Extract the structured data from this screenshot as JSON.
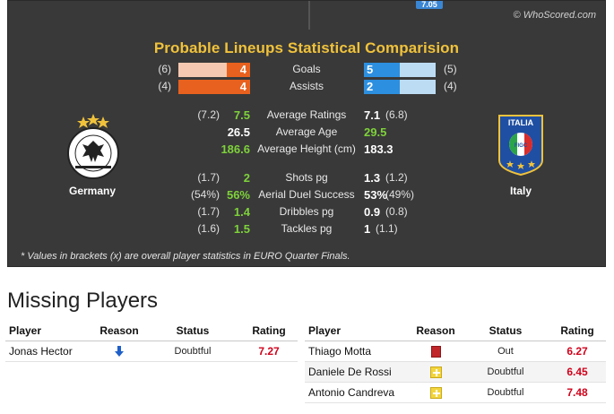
{
  "comparison": {
    "watermark": "© WhoScored.com",
    "top_badge": "7.05",
    "title": "Probable Lineups Statistical Comparision",
    "home_team": "Germany",
    "away_team": "Italy",
    "home_crest_text": "DEUTSCHER FUSSBALL-BUND",
    "away_crest_text": "ITALIA",
    "away_crest_sub": "FIGC",
    "bars": [
      {
        "label": "Goals",
        "home_paren": "(6)",
        "home_val": "4",
        "home_fraction": 0.33,
        "away_val": "5",
        "away_fraction": 0.5,
        "away_paren": "(5)"
      },
      {
        "label": "Assists",
        "home_paren": "(4)",
        "home_val": "4",
        "home_fraction": 1.0,
        "away_val": "2",
        "away_fraction": 0.5,
        "away_paren": "(4)"
      }
    ],
    "stats": [
      {
        "label": "Average Ratings",
        "home_paren": "(7.2)",
        "home_val": "7.5",
        "home_green": true,
        "away_val": "7.1",
        "away_green": false,
        "away_paren": "(6.8)"
      },
      {
        "label": "Average Age",
        "home_paren": "",
        "home_val": "26.5",
        "home_green": false,
        "away_val": "29.5",
        "away_green": true,
        "away_paren": ""
      },
      {
        "label": "Average Height (cm)",
        "home_paren": "",
        "home_val": "186.6",
        "home_green": true,
        "away_val": "183.3",
        "away_green": false,
        "away_paren": ""
      },
      {
        "label": "Shots pg",
        "home_paren": "(1.7)",
        "home_val": "2",
        "home_green": true,
        "away_val": "1.3",
        "away_green": false,
        "away_paren": "(1.2)"
      },
      {
        "label": "Aerial Duel Success",
        "home_paren": "(54%)",
        "home_val": "56%",
        "home_green": true,
        "away_val": "53%",
        "away_green": false,
        "away_paren": "(49%)"
      },
      {
        "label": "Dribbles pg",
        "home_paren": "(1.7)",
        "home_val": "1.4",
        "home_green": true,
        "away_val": "0.9",
        "away_green": false,
        "away_paren": "(0.8)"
      },
      {
        "label": "Tackles pg",
        "home_paren": "(1.6)",
        "home_val": "1.5",
        "home_green": true,
        "away_val": "1",
        "away_green": false,
        "away_paren": "(1.1)"
      }
    ],
    "footnote": "* Values in brackets (x) are overall player statistics in EURO Quarter Finals.",
    "colors": {
      "panel": "#393939",
      "title": "#f0c23b",
      "home_bar": "#e8611e",
      "home_bar_bg": "#f5c9b1",
      "away_bar": "#2d8fdf",
      "away_bar_bg": "#bcdcf3",
      "green": "#7ed23a"
    }
  },
  "missing": {
    "title": "Missing Players",
    "headers": {
      "player": "Player",
      "reason": "Reason",
      "status": "Status",
      "rating": "Rating"
    },
    "home": [
      {
        "player": "Jonas Hector",
        "reason_icon": "down-arrow-icon",
        "status": "Doubtful",
        "rating": "7.27"
      }
    ],
    "away": [
      {
        "player": "Thiago Motta",
        "reason_icon": "red-card-icon",
        "status": "Out",
        "rating": "6.27"
      },
      {
        "player": "Daniele De Rossi",
        "reason_icon": "injury-icon",
        "status": "Doubtful",
        "rating": "6.45"
      },
      {
        "player": "Antonio Candreva",
        "reason_icon": "injury-icon",
        "status": "Doubtful",
        "rating": "7.48"
      }
    ]
  }
}
